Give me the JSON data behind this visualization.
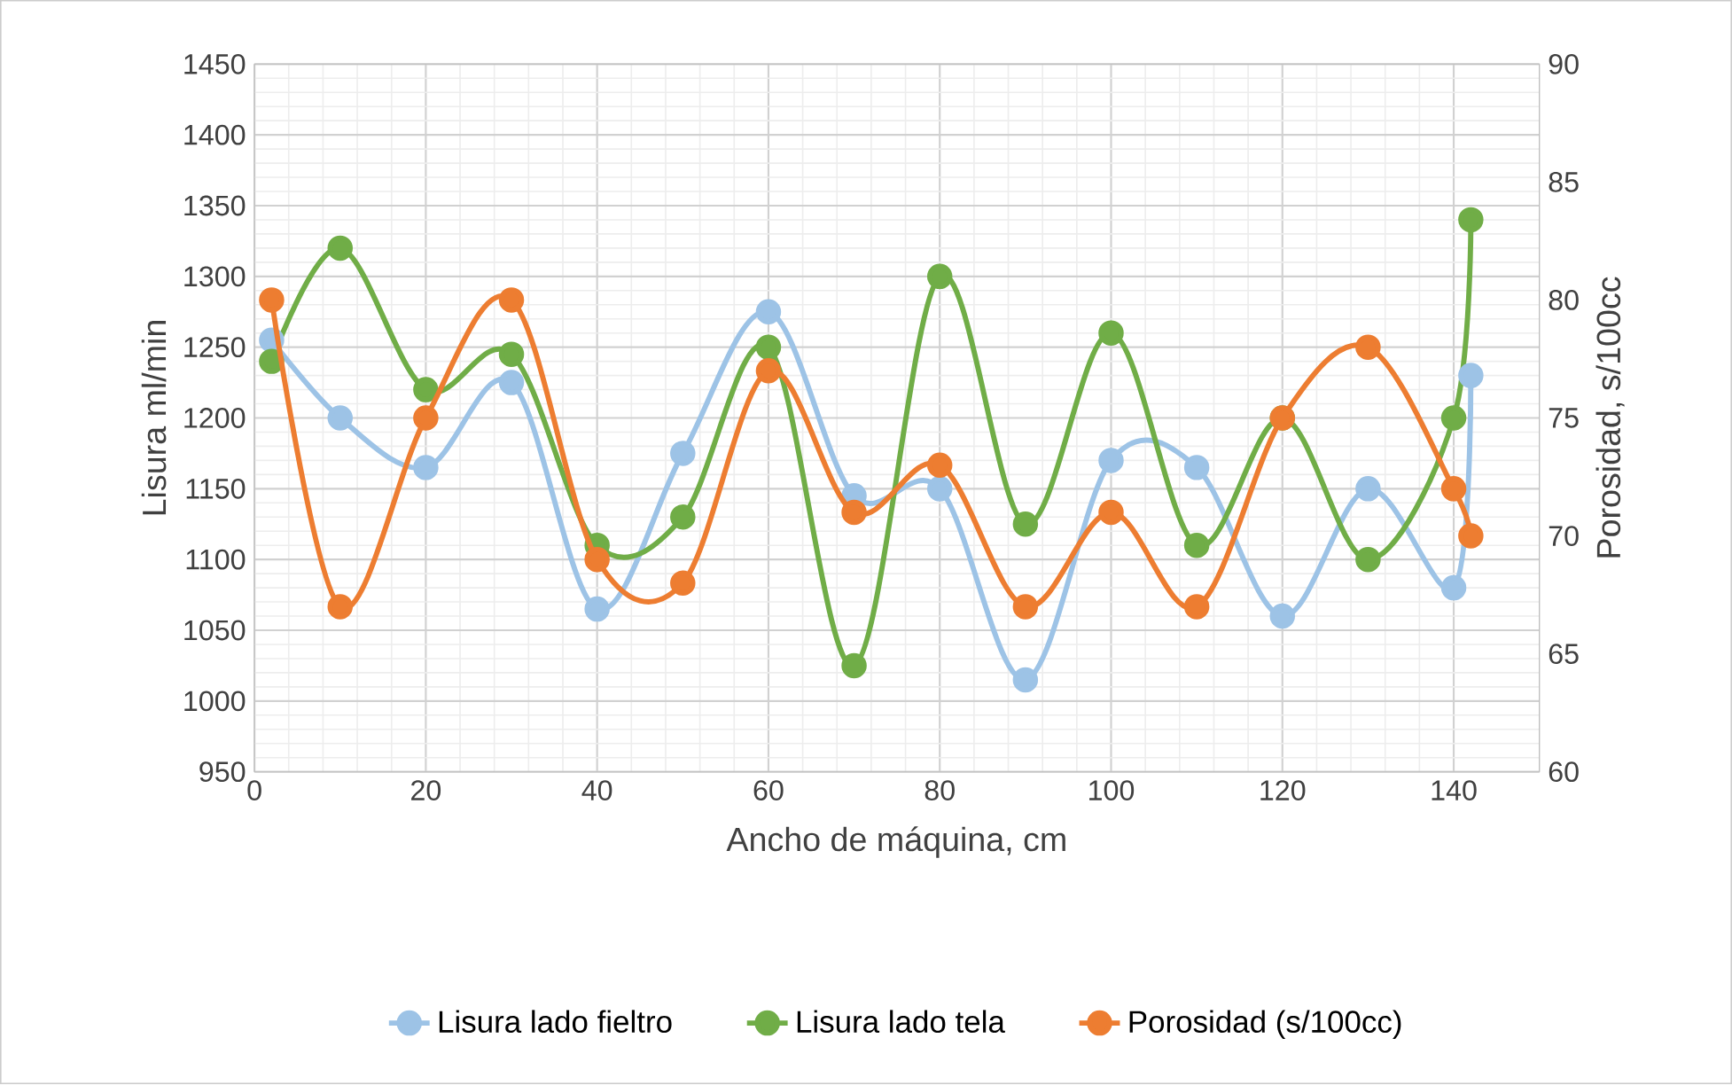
{
  "chart_data": {
    "type": "line",
    "xlabel": "Ancho de máquina, cm",
    "ylabel": "Lisura ml/min",
    "y2label": "Porosidad, s/100cc",
    "x": [
      2,
      10,
      20,
      30,
      40,
      50,
      60,
      70,
      80,
      90,
      100,
      110,
      120,
      130,
      140,
      142
    ],
    "series": [
      {
        "name": "Lisura lado fieltro",
        "color": "#9dc3e6",
        "values": [
          1255,
          1200,
          1165,
          1225,
          1065,
          1175,
          1275,
          1145,
          1150,
          1015,
          1170,
          1165,
          1060,
          1150,
          1080,
          1230
        ]
      },
      {
        "name": "Lisura lado tela",
        "color": "#70ad47",
        "values": [
          1240,
          1320,
          1220,
          1245,
          1110,
          1130,
          1250,
          1025,
          1300,
          1125,
          1260,
          1110,
          1200,
          1100,
          1200,
          1340
        ]
      },
      {
        "name": "Porosidad (s/100cc)",
        "color": "#ed7d31",
        "axis": "y2",
        "values": [
          80,
          67,
          75,
          80,
          69,
          68,
          77,
          71,
          73,
          67,
          71,
          67,
          75,
          78,
          72,
          70
        ]
      }
    ],
    "xlim": [
      0,
      150
    ],
    "xticks": [
      0,
      20,
      40,
      60,
      80,
      100,
      120,
      140
    ],
    "ylim": [
      950,
      1450
    ],
    "yticks": [
      950,
      1000,
      1050,
      1100,
      1150,
      1200,
      1250,
      1300,
      1350,
      1400,
      1450
    ],
    "y2lim": [
      60,
      90
    ],
    "y2ticks": [
      60,
      65,
      70,
      75,
      80,
      85,
      90
    ],
    "grid": true,
    "legend": "bottom",
    "marker": "circle",
    "line_style": "solid"
  }
}
